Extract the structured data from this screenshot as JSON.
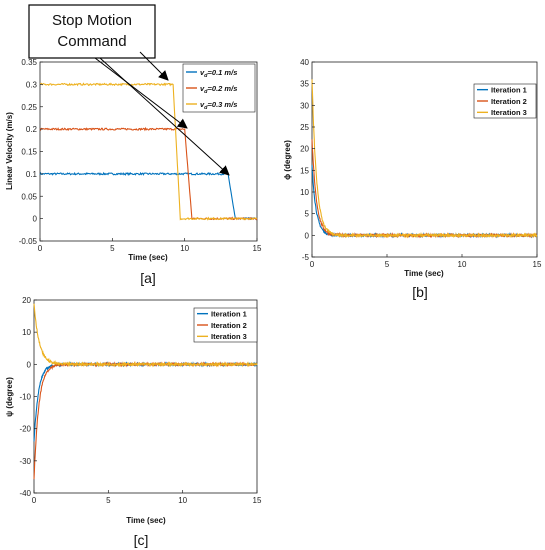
{
  "callout": {
    "line1": "Stop Motion",
    "line2": "Command"
  },
  "chart_data": [
    {
      "id": "a",
      "type": "line",
      "panel_label": "[a]",
      "xlabel": "Time (sec)",
      "ylabel": "Linear Velocity (m/s)",
      "xlim": [
        0,
        15
      ],
      "ylim": [
        -0.05,
        0.35
      ],
      "xticks": [
        0,
        5,
        10,
        15
      ],
      "xtick_labels": [
        "0",
        "5",
        "10",
        "15"
      ],
      "yticks": [
        -0.05,
        0,
        0.05,
        0.1,
        0.15,
        0.2,
        0.25,
        0.3,
        0.35
      ],
      "ytick_labels": [
        "-0.05",
        "0",
        "0.05",
        "0.1",
        "0.15",
        "0.2",
        "0.25",
        "0.3",
        "0.35"
      ],
      "legend_position": "top-right",
      "series": [
        {
          "name": "v_d=0.1 m/s",
          "legend_main": "v",
          "legend_sub": "d",
          "legend_rest": "=0.1 m/s",
          "color": "#0072BD",
          "x": [
            0,
            13.0,
            13.5,
            15
          ],
          "y": [
            0.1,
            0.1,
            0.0,
            0.0
          ]
        },
        {
          "name": "v_d=0.2 m/s",
          "legend_main": "v",
          "legend_sub": "d",
          "legend_rest": "=0.2 m/s",
          "color": "#D95319",
          "x": [
            0,
            10.0,
            10.5,
            15
          ],
          "y": [
            0.2,
            0.2,
            0.0,
            0.0
          ]
        },
        {
          "name": "v_d=0.3 m/s",
          "legend_main": "v",
          "legend_sub": "d",
          "legend_rest": "=0.3 m/s",
          "color": "#EDB120",
          "x": [
            0,
            9.2,
            9.7,
            15
          ],
          "y": [
            0.3,
            0.3,
            0.0,
            0.0
          ]
        }
      ]
    },
    {
      "id": "b",
      "type": "line",
      "panel_label": "[b]",
      "xlabel": "Time (sec)",
      "ylabel": "ϕ (degree)",
      "xlim": [
        0,
        15
      ],
      "ylim": [
        -5,
        40
      ],
      "xticks": [
        0,
        5,
        10,
        15
      ],
      "xtick_labels": [
        "0",
        "5",
        "10",
        "15"
      ],
      "yticks": [
        -5,
        0,
        5,
        10,
        15,
        20,
        25,
        30,
        35,
        40
      ],
      "ytick_labels": [
        "-5",
        "0",
        "5",
        "10",
        "15",
        "20",
        "25",
        "30",
        "35",
        "40"
      ],
      "legend_position": "top-right",
      "series": [
        {
          "name": "Iteration 1",
          "color": "#0072BD",
          "start": 16,
          "tau": 0.28
        },
        {
          "name": "Iteration 2",
          "color": "#D95319",
          "start": 22,
          "tau": 0.3
        },
        {
          "name": "Iteration 3",
          "color": "#EDB120",
          "start": 36,
          "tau": 0.3
        }
      ]
    },
    {
      "id": "c",
      "type": "line",
      "panel_label": "[c]",
      "xlabel": "Time (sec)",
      "ylabel": "ψ (degree)",
      "xlim": [
        0,
        15
      ],
      "ylim": [
        -40,
        20
      ],
      "xticks": [
        0,
        5,
        10,
        15
      ],
      "xtick_labels": [
        "0",
        "5",
        "10",
        "15"
      ],
      "yticks": [
        -40,
        -30,
        -20,
        -10,
        0,
        10,
        20
      ],
      "ytick_labels": [
        "-40",
        "-30",
        "-20",
        "-10",
        "0",
        "10",
        "20"
      ],
      "legend_position": "top-right",
      "series": [
        {
          "name": "Iteration 1",
          "color": "#0072BD",
          "start": -24,
          "tau": 0.3
        },
        {
          "name": "Iteration 2",
          "color": "#D95319",
          "start": -36,
          "tau": 0.32
        },
        {
          "name": "Iteration 3",
          "color": "#EDB120",
          "start": 19,
          "tau": 0.35
        }
      ]
    }
  ]
}
